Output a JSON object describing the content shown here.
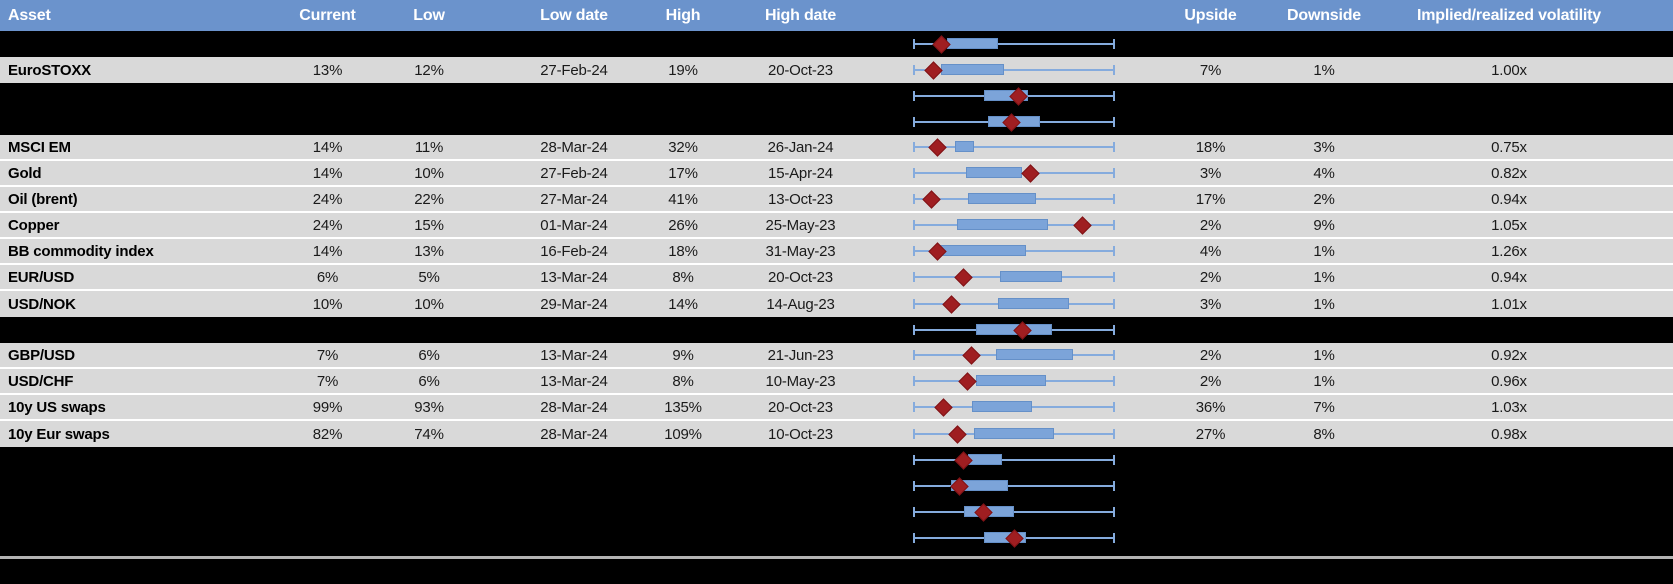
{
  "header": {
    "columns": [
      "Asset",
      "Current",
      "Low",
      "Low date",
      "High",
      "High date",
      "",
      "Upside",
      "Downside",
      "Implied/realized volatility"
    ]
  },
  "colors": {
    "header_bg": "#6b93cc",
    "header_text": "#ffffff",
    "row_bg": "#d9d9d9",
    "spacer_bg": "#000000",
    "text": "#1a1a1a",
    "whisker": "#85abdd",
    "box_fill": "#7ca4d9",
    "box_border": "#6590c8",
    "marker_fill": "#9f1e21",
    "marker_border": "#801316",
    "divider": "#b3b3b3"
  },
  "chart_data": {
    "type": "table",
    "title": "Implied volatility: current level vs low/high range by asset",
    "description": "Each row shows an asset's implied volatility stats. The middle column is a horizontal box-whisker plot of the low-to-high range with a dark-red diamond marking the current level. 'box' and 'marker' are fractions (0-1) along the whisker track from left cap to right cap. Rows with asset=null are blacked-out (redacted) rows that still display a box plot.",
    "columns": [
      "Asset",
      "Current",
      "Low",
      "Low date",
      "High",
      "High date",
      "Range plot",
      "Upside",
      "Downside",
      "Implied/realized volatility"
    ],
    "rows": [
      {
        "asset": null,
        "box": [
          0.17,
          0.42
        ],
        "marker": 0.14
      },
      {
        "asset": "EuroSTOXX",
        "current": "13%",
        "low": "12%",
        "low_date": "27-Feb-24",
        "high": "19%",
        "high_date": "20-Oct-23",
        "upside": "7%",
        "downside": "1%",
        "implied_realized": "1.00x",
        "box": [
          0.14,
          0.45
        ],
        "marker": 0.1
      },
      {
        "asset": null,
        "box": [
          0.35,
          0.57
        ],
        "marker": 0.52
      },
      {
        "asset": null,
        "box": [
          0.37,
          0.63
        ],
        "marker": 0.49
      },
      {
        "asset": "MSCI EM",
        "current": "14%",
        "low": "11%",
        "low_date": "28-Mar-24",
        "high": "32%",
        "high_date": "26-Jan-24",
        "upside": "18%",
        "downside": "3%",
        "implied_realized": "0.75x",
        "box": [
          0.21,
          0.3
        ],
        "marker": 0.12
      },
      {
        "asset": "Gold",
        "current": "14%",
        "low": "10%",
        "low_date": "27-Feb-24",
        "high": "17%",
        "high_date": "15-Apr-24",
        "upside": "3%",
        "downside": "4%",
        "implied_realized": "0.82x",
        "box": [
          0.26,
          0.54
        ],
        "marker": 0.58
      },
      {
        "asset": "Oil (brent)",
        "current": "24%",
        "low": "22%",
        "low_date": "27-Mar-24",
        "high": "41%",
        "high_date": "13-Oct-23",
        "upside": "17%",
        "downside": "2%",
        "implied_realized": "0.94x",
        "box": [
          0.27,
          0.61
        ],
        "marker": 0.09
      },
      {
        "asset": "Copper",
        "current": "24%",
        "low": "15%",
        "low_date": "01-Mar-24",
        "high": "26%",
        "high_date": "25-May-23",
        "upside": "2%",
        "downside": "9%",
        "implied_realized": "1.05x",
        "box": [
          0.22,
          0.67
        ],
        "marker": 0.84
      },
      {
        "asset": "BB commodity index",
        "current": "14%",
        "low": "13%",
        "low_date": "16-Feb-24",
        "high": "18%",
        "high_date": "31-May-23",
        "upside": "4%",
        "downside": "1%",
        "implied_realized": "1.26x",
        "box": [
          0.13,
          0.56
        ],
        "marker": 0.12
      },
      {
        "asset": "EUR/USD",
        "current": "6%",
        "low": "5%",
        "low_date": "13-Mar-24",
        "high": "8%",
        "high_date": "20-Oct-23",
        "upside": "2%",
        "downside": "1%",
        "implied_realized": "0.94x",
        "box": [
          0.43,
          0.74
        ],
        "marker": 0.25
      },
      {
        "asset": "USD/NOK",
        "current": "10%",
        "low": "10%",
        "low_date": "29-Mar-24",
        "high": "14%",
        "high_date": "14-Aug-23",
        "upside": "3%",
        "downside": "1%",
        "implied_realized": "1.01x",
        "box": [
          0.42,
          0.77
        ],
        "marker": 0.19
      },
      {
        "asset": null,
        "box": [
          0.31,
          0.69
        ],
        "marker": 0.54
      },
      {
        "asset": "GBP/USD",
        "current": "7%",
        "low": "6%",
        "low_date": "13-Mar-24",
        "high": "9%",
        "high_date": "21-Jun-23",
        "upside": "2%",
        "downside": "1%",
        "implied_realized": "0.92x",
        "box": [
          0.41,
          0.79
        ],
        "marker": 0.29
      },
      {
        "asset": "USD/CHF",
        "current": "7%",
        "low": "6%",
        "low_date": "13-Mar-24",
        "high": "8%",
        "high_date": "10-May-23",
        "upside": "2%",
        "downside": "1%",
        "implied_realized": "0.96x",
        "box": [
          0.31,
          0.66
        ],
        "marker": 0.27
      },
      {
        "asset": "10y US swaps",
        "current": "99%",
        "low": "93%",
        "low_date": "28-Mar-24",
        "high": "135%",
        "high_date": "20-Oct-23",
        "upside": "36%",
        "downside": "7%",
        "implied_realized": "1.03x",
        "box": [
          0.29,
          0.59
        ],
        "marker": 0.15
      },
      {
        "asset": "10y Eur swaps",
        "current": "82%",
        "low": "74%",
        "low_date": "28-Mar-24",
        "high": "109%",
        "high_date": "10-Oct-23",
        "upside": "27%",
        "downside": "8%",
        "implied_realized": "0.98x",
        "box": [
          0.3,
          0.7
        ],
        "marker": 0.22
      },
      {
        "asset": null,
        "box": [
          0.27,
          0.44
        ],
        "marker": 0.25
      },
      {
        "asset": null,
        "box": [
          0.19,
          0.47
        ],
        "marker": 0.23
      },
      {
        "asset": null,
        "box": [
          0.25,
          0.5
        ],
        "marker": 0.35
      },
      {
        "asset": null,
        "box": [
          0.35,
          0.56
        ],
        "marker": 0.5
      }
    ]
  }
}
